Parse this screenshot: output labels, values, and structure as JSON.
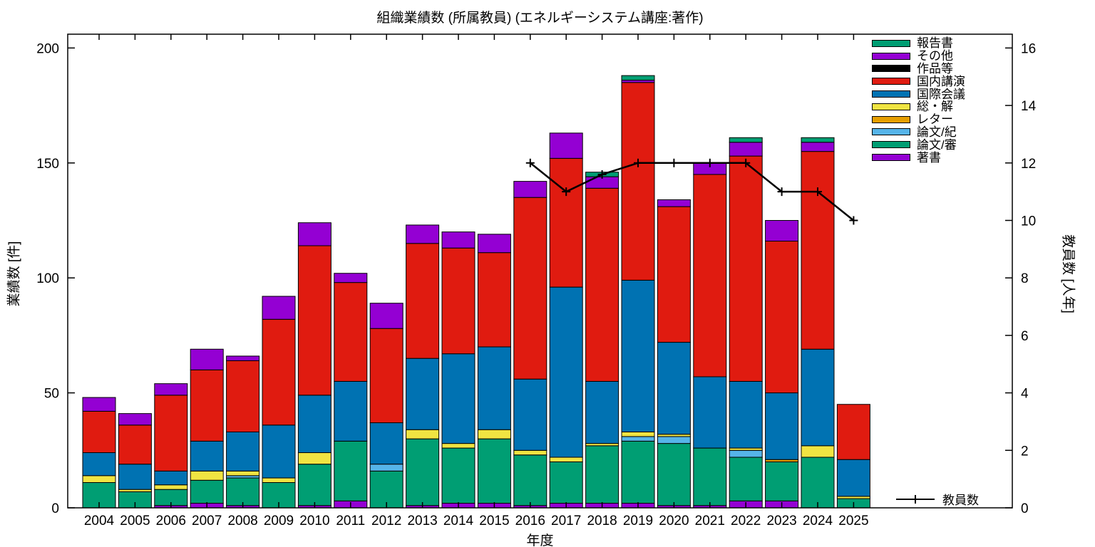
{
  "chart_title": "組織業績数 (所属教員) (エネルギーシステム講座:著作)",
  "chart_data": {
    "type": "bar",
    "subtype": "stacked-bars-with-line-overlay",
    "title": "組織業績数 (所属教員) (エネルギーシステム講座:著作)",
    "xlabel": "年度",
    "ylabel_left": "業績数 [件]",
    "ylabel_right": "教員数 [人年]",
    "grid": false,
    "legend_position": "top-right-inside",
    "categories": [
      2004,
      2005,
      2006,
      2007,
      2008,
      2009,
      2010,
      2011,
      2012,
      2013,
      2014,
      2015,
      2016,
      2017,
      2018,
      2019,
      2020,
      2021,
      2022,
      2023,
      2024,
      2025
    ],
    "yticks_left": [
      0,
      50,
      100,
      150,
      200
    ],
    "yticks_right": [
      0,
      2,
      4,
      6,
      8,
      10,
      12,
      14,
      16
    ],
    "ylim_left": [
      0,
      206
    ],
    "ylim_right": [
      0,
      16.48
    ],
    "series": [
      {
        "name": "著書",
        "color": "#9400d3",
        "values": [
          0,
          0,
          1,
          2,
          1,
          0,
          1,
          3,
          0,
          1,
          2,
          2,
          1,
          2,
          2,
          2,
          1,
          1,
          3,
          3,
          0,
          0
        ]
      },
      {
        "name": "論文/審",
        "color": "#009e73",
        "values": [
          11,
          7,
          7,
          10,
          12,
          11,
          18,
          26,
          16,
          29,
          24,
          28,
          22,
          18,
          25,
          27,
          27,
          25,
          19,
          17,
          22,
          4
        ]
      },
      {
        "name": "論文/紀",
        "color": "#56b4e9",
        "values": [
          0,
          0,
          0,
          0,
          1,
          0,
          0,
          0,
          3,
          0,
          0,
          0,
          0,
          0,
          0,
          2,
          3,
          0,
          3,
          0,
          0,
          0
        ]
      },
      {
        "name": "レター",
        "color": "#e69f00",
        "values": [
          0,
          0,
          0,
          0,
          0,
          0,
          0,
          0,
          0,
          0,
          0,
          0,
          0,
          0,
          0,
          0,
          0,
          0,
          0,
          1,
          0,
          0
        ]
      },
      {
        "name": "総・解",
        "color": "#f0e442",
        "values": [
          3,
          1,
          2,
          4,
          2,
          2,
          5,
          0,
          0,
          4,
          2,
          4,
          2,
          2,
          1,
          2,
          1,
          0,
          1,
          0,
          5,
          1
        ]
      },
      {
        "name": "国際会議",
        "color": "#0072b2",
        "values": [
          10,
          11,
          6,
          13,
          17,
          23,
          25,
          26,
          18,
          31,
          39,
          36,
          31,
          74,
          27,
          66,
          40,
          31,
          29,
          29,
          42,
          16
        ]
      },
      {
        "name": "国内講演",
        "color": "#e01b10",
        "values": [
          18,
          17,
          33,
          31,
          31,
          46,
          65,
          43,
          41,
          50,
          46,
          41,
          79,
          56,
          84,
          86,
          59,
          88,
          98,
          66,
          86,
          24
        ]
      },
      {
        "name": "作品等",
        "color": "#000000",
        "values": [
          0,
          0,
          0,
          0,
          0,
          0,
          0,
          0,
          0,
          0,
          0,
          0,
          0,
          0,
          0,
          0,
          0,
          0,
          0,
          0,
          0,
          0
        ]
      },
      {
        "name": "その他",
        "color": "#9400d3",
        "values": [
          6,
          5,
          5,
          9,
          2,
          10,
          10,
          4,
          11,
          8,
          7,
          8,
          7,
          11,
          5,
          1,
          3,
          5,
          6,
          9,
          4,
          0
        ]
      },
      {
        "name": "報告書",
        "color": "#009e73",
        "values": [
          0,
          0,
          0,
          0,
          0,
          0,
          0,
          0,
          0,
          0,
          0,
          0,
          0,
          0,
          2,
          2,
          0,
          0,
          2,
          0,
          2,
          0
        ]
      }
    ],
    "line_series": {
      "name": "教員数",
      "color": "#000000",
      "marker": "+",
      "axis": "right",
      "x": [
        2016,
        2017,
        2018,
        2019,
        2020,
        2021,
        2022,
        2023,
        2024,
        2025
      ],
      "values": [
        12,
        11,
        11.6,
        12,
        12,
        12,
        12,
        11,
        11,
        10
      ]
    }
  }
}
